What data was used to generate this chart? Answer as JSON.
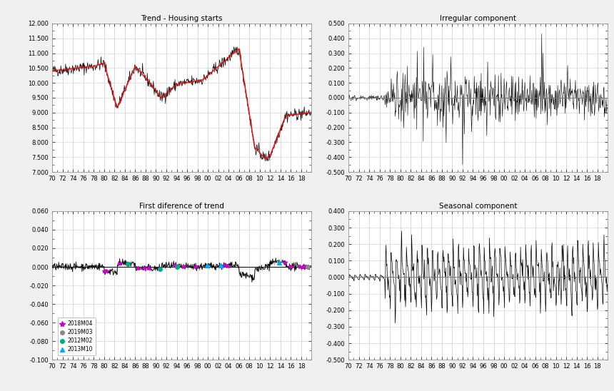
{
  "title_tl": "Trend - Housing starts",
  "title_tr": "Irregular component",
  "title_bl": "First diference of trend",
  "title_br": "Seasonal component",
  "xtick_labels": [
    "70",
    "72",
    "74",
    "76",
    "78",
    "80",
    "82",
    "84",
    "86",
    "88",
    "90",
    "92",
    "94",
    "96",
    "98",
    "00",
    "02",
    "04",
    "06",
    "08",
    "10",
    "12",
    "14",
    "16",
    "18"
  ],
  "tl_ylim": [
    7000,
    12000
  ],
  "tl_yticks": [
    7000,
    7500,
    8000,
    8500,
    9000,
    9500,
    10000,
    10500,
    11000,
    11500,
    12000
  ],
  "tl_yticklabels": [
    "7.000",
    "7.500",
    "8.000",
    "8.500",
    "9.000",
    "9.500",
    "10.000",
    "10.500",
    "11.000",
    "11.500",
    "12.000"
  ],
  "tr_ylim": [
    -0.5,
    0.5
  ],
  "tr_yticks": [
    -0.5,
    -0.4,
    -0.3,
    -0.2,
    -0.1,
    0.0,
    0.1,
    0.2,
    0.3,
    0.4,
    0.5
  ],
  "tr_yticklabels": [
    "-0.500",
    "-0.400",
    "-0.300",
    "-0.200",
    "-0.100",
    "0.000",
    "0.100",
    "0.200",
    "0.300",
    "0.400",
    "0.500"
  ],
  "bl_ylim": [
    -0.1,
    0.06
  ],
  "bl_yticks": [
    -0.1,
    -0.08,
    -0.06,
    -0.04,
    -0.02,
    0.0,
    0.02,
    0.04,
    0.06
  ],
  "bl_yticklabels": [
    "-0.100",
    "-0.080",
    "-0.060",
    "-0.040",
    "-0.020",
    "0.000",
    "0.020",
    "0.040",
    "0.060"
  ],
  "br_ylim": [
    -0.5,
    0.4
  ],
  "br_yticks": [
    -0.5,
    -0.4,
    -0.3,
    -0.2,
    -0.1,
    0.0,
    0.1,
    0.2,
    0.3,
    0.4
  ],
  "br_yticklabels": [
    "-0.500",
    "-0.400",
    "-0.300",
    "-0.200",
    "-0.100",
    "0.000",
    "0.100",
    "0.200",
    "0.300",
    "0.400"
  ],
  "legend_entries": [
    "2018M04",
    "2019M03",
    "2012M02",
    "2013M10"
  ],
  "legend_colors": [
    "#cc00cc",
    "#888888",
    "#00aa88",
    "#00aaff"
  ],
  "legend_markers": [
    "*",
    "o",
    "o",
    "^"
  ],
  "bg_color": "#f0f0f0",
  "plot_bg": "#ffffff",
  "grid_color": "#cccccc",
  "spine_color": "#999999"
}
